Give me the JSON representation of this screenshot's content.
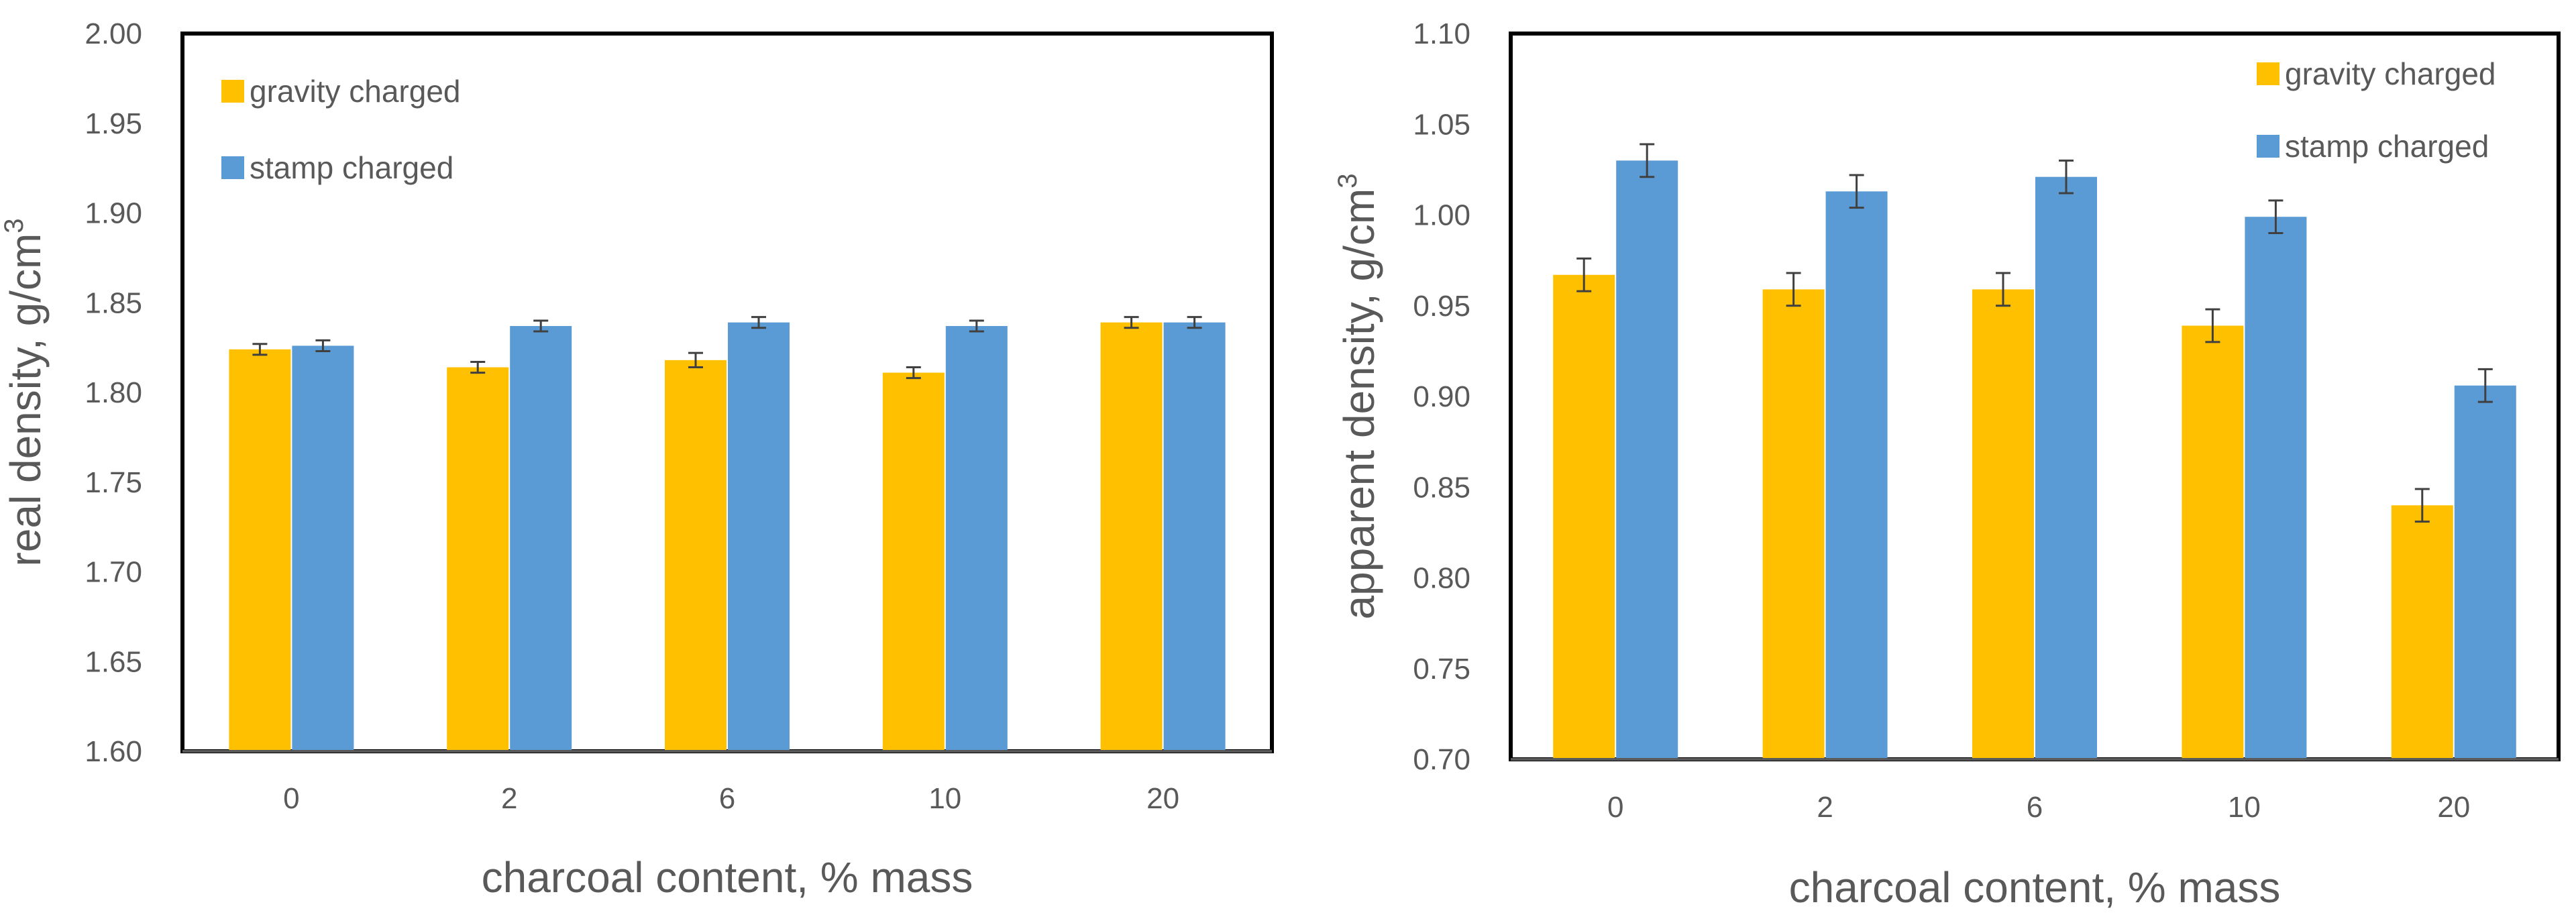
{
  "colors": {
    "gravity": "#FFC000",
    "stamp": "#5B9BD5",
    "text": "#595959",
    "frame": "#000000",
    "grid": "#D9D9D9"
  },
  "chart_data": [
    {
      "type": "bar",
      "title": "",
      "xlabel": "charcoal content, % mass",
      "ylabel_main": "real density, g/cm",
      "ylabel_sup": "3",
      "ylim": [
        1.6,
        2.0
      ],
      "ystep": 0.05,
      "ytick_labels": [
        "1.60",
        "1.65",
        "1.70",
        "1.75",
        "1.80",
        "1.85",
        "1.90",
        "1.95",
        "2.00"
      ],
      "categories": [
        "0",
        "2",
        "6",
        "10",
        "20"
      ],
      "legend_position": "top-left",
      "series": [
        {
          "name": "gravity charged",
          "color_key": "gravity",
          "values": [
            1.824,
            1.814,
            1.818,
            1.811,
            1.839
          ],
          "errors": [
            0.003,
            0.003,
            0.004,
            0.003,
            0.003
          ]
        },
        {
          "name": "stamp charged",
          "color_key": "stamp",
          "values": [
            1.826,
            1.837,
            1.839,
            1.837,
            1.839
          ],
          "errors": [
            0.003,
            0.003,
            0.003,
            0.003,
            0.003
          ]
        }
      ]
    },
    {
      "type": "bar",
      "title": "",
      "xlabel": "charcoal content, % mass",
      "ylabel_main": "apparent density, g/cm",
      "ylabel_sup": "3",
      "ylim": [
        0.7,
        1.1
      ],
      "ystep": 0.05,
      "ytick_labels": [
        "0.70",
        "0.75",
        "0.80",
        "0.85",
        "0.90",
        "0.95",
        "1.00",
        "1.05",
        "1.10"
      ],
      "categories": [
        "0",
        "2",
        "6",
        "10",
        "20"
      ],
      "legend_position": "top-right",
      "series": [
        {
          "name": "gravity charged",
          "color_key": "gravity",
          "values": [
            0.967,
            0.959,
            0.959,
            0.939,
            0.84
          ],
          "errors": [
            0.009,
            0.009,
            0.009,
            0.009,
            0.009
          ]
        },
        {
          "name": "stamp charged",
          "color_key": "stamp",
          "values": [
            1.03,
            1.013,
            1.021,
            0.999,
            0.906
          ],
          "errors": [
            0.009,
            0.009,
            0.009,
            0.009,
            0.009
          ]
        }
      ]
    }
  ]
}
